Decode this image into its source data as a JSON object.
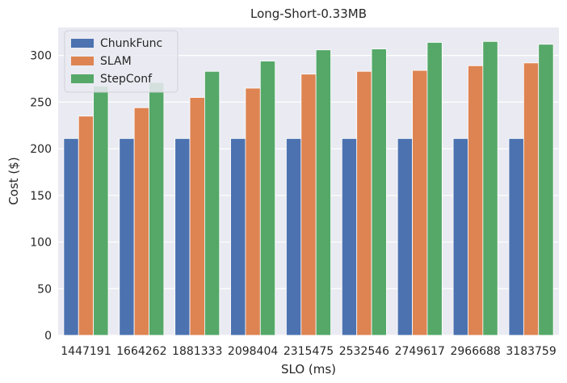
{
  "chart_data": {
    "type": "bar",
    "title": "Long-Short-0.33MB",
    "xlabel": "SLO (ms)",
    "ylabel": "Cost ($)",
    "categories": [
      "1447191",
      "1664262",
      "1881333",
      "2098404",
      "2315475",
      "2532546",
      "2749617",
      "2966688",
      "3183759"
    ],
    "series": [
      {
        "name": "ChunkFunc",
        "color": "#4c72b0",
        "values": [
          211,
          211,
          211,
          211,
          211,
          211,
          211,
          211,
          211
        ]
      },
      {
        "name": "SLAM",
        "color": "#dd8452",
        "values": [
          235,
          244,
          255,
          265,
          280,
          283,
          284,
          289,
          292
        ]
      },
      {
        "name": "StepConf",
        "color": "#55a868",
        "values": [
          267,
          271,
          283,
          294,
          306,
          307,
          314,
          315,
          312
        ]
      }
    ],
    "ylim": [
      0,
      330
    ],
    "yticks": [
      0,
      50,
      100,
      150,
      200,
      250,
      300
    ],
    "grid": true,
    "legend_position": "top-left",
    "background": "#eaeaf2"
  }
}
